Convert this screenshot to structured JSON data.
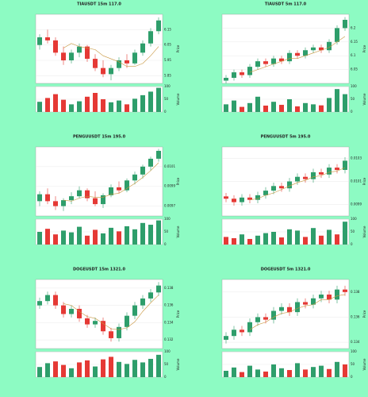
{
  "chart_data": [
    {
      "type": "candlestick",
      "title": "TIAUSDT 15m 117.0",
      "y_label": "Price",
      "volume_label": "Volume",
      "up_color": "#2e9e6b",
      "down_color": "#e53935",
      "ma_color": "#c8963e",
      "ylim": [
        5.8,
        6.25
      ],
      "yticks": [
        5.85,
        5.95,
        6.05,
        6.15
      ],
      "vlim": [
        0,
        100
      ],
      "vticks": [
        0,
        50,
        100
      ],
      "candles": [
        [
          6.05,
          6.12,
          6.02,
          6.1
        ],
        [
          6.1,
          6.15,
          6.06,
          6.08
        ],
        [
          6.08,
          6.1,
          5.98,
          6.0
        ],
        [
          6.0,
          6.04,
          5.92,
          5.95
        ],
        [
          5.95,
          6.02,
          5.93,
          6.0
        ],
        [
          6.0,
          6.06,
          5.97,
          6.04
        ],
        [
          6.04,
          6.05,
          5.94,
          5.96
        ],
        [
          5.96,
          5.99,
          5.88,
          5.9
        ],
        [
          5.9,
          5.95,
          5.84,
          5.86
        ],
        [
          5.86,
          5.92,
          5.82,
          5.9
        ],
        [
          5.9,
          5.97,
          5.88,
          5.95
        ],
        [
          5.95,
          5.99,
          5.9,
          5.93
        ],
        [
          5.93,
          6.02,
          5.92,
          6.0
        ],
        [
          6.0,
          6.08,
          5.98,
          6.06
        ],
        [
          6.06,
          6.16,
          6.04,
          6.14
        ],
        [
          6.14,
          6.23,
          6.12,
          6.21
        ]
      ],
      "volumes": [
        40,
        55,
        70,
        48,
        30,
        42,
        60,
        75,
        50,
        38,
        45,
        30,
        52,
        66,
        80,
        95
      ],
      "ma": [
        null,
        null,
        null,
        6.03,
        6.06,
        6.04,
        6.03,
        6.02,
        5.98,
        5.96,
        5.94,
        5.91,
        5.91,
        5.93,
        5.98,
        6.04
      ]
    },
    {
      "type": "candlestick",
      "title": "TIAUSDT 5m 117.0",
      "y_label": "Price",
      "volume_label": "Volume",
      "up_color": "#2e9e6b",
      "down_color": "#e53935",
      "ma_color": "#c8963e",
      "ylim": [
        6.0,
        6.25
      ],
      "yticks": [
        6.05,
        6.1,
        6.15,
        6.2
      ],
      "vlim": [
        0,
        100
      ],
      "vticks": [
        0,
        50,
        100
      ],
      "candles": [
        [
          6.01,
          6.03,
          6.0,
          6.02
        ],
        [
          6.02,
          6.05,
          6.01,
          6.04
        ],
        [
          6.04,
          6.05,
          6.02,
          6.03
        ],
        [
          6.03,
          6.07,
          6.02,
          6.06
        ],
        [
          6.06,
          6.09,
          6.05,
          6.08
        ],
        [
          6.08,
          6.09,
          6.06,
          6.07
        ],
        [
          6.07,
          6.1,
          6.06,
          6.09
        ],
        [
          6.09,
          6.1,
          6.07,
          6.08
        ],
        [
          6.08,
          6.12,
          6.07,
          6.11
        ],
        [
          6.11,
          6.12,
          6.09,
          6.1
        ],
        [
          6.1,
          6.13,
          6.09,
          6.12
        ],
        [
          6.12,
          6.14,
          6.11,
          6.13
        ],
        [
          6.13,
          6.14,
          6.11,
          6.12
        ],
        [
          6.12,
          6.16,
          6.11,
          6.15
        ],
        [
          6.15,
          6.21,
          6.14,
          6.2
        ],
        [
          6.2,
          6.24,
          6.19,
          6.23
        ]
      ],
      "volumes": [
        30,
        45,
        20,
        35,
        60,
        25,
        40,
        28,
        50,
        22,
        35,
        30,
        26,
        55,
        90,
        70
      ],
      "ma": [
        null,
        null,
        null,
        6.04,
        6.05,
        6.06,
        6.07,
        6.08,
        6.09,
        6.09,
        6.1,
        6.11,
        6.12,
        6.13,
        6.15,
        6.17
      ]
    },
    {
      "type": "candlestick",
      "title": "PENGUUSDT 15m 195.0",
      "y_label": "Price",
      "volume_label": "Volume",
      "up_color": "#2e9e6b",
      "down_color": "#e53935",
      "ma_color": "#c8963e",
      "ylim": [
        0.0096,
        0.0103
      ],
      "yticks": [
        0.0097,
        0.0099,
        0.0101
      ],
      "vlim": [
        0,
        100
      ],
      "vticks": [
        0,
        50,
        100
      ],
      "candles": [
        [
          0.00975,
          0.00985,
          0.0097,
          0.00982
        ],
        [
          0.00982,
          0.00988,
          0.00972,
          0.00975
        ],
        [
          0.00975,
          0.0098,
          0.00966,
          0.0097
        ],
        [
          0.0097,
          0.00978,
          0.00965,
          0.00976
        ],
        [
          0.00976,
          0.00984,
          0.00972,
          0.0098
        ],
        [
          0.0098,
          0.0099,
          0.00978,
          0.00986
        ],
        [
          0.00986,
          0.00988,
          0.00975,
          0.00978
        ],
        [
          0.00978,
          0.00985,
          0.0097,
          0.00972
        ],
        [
          0.00972,
          0.00983,
          0.00968,
          0.00981
        ],
        [
          0.00981,
          0.00992,
          0.00979,
          0.00989
        ],
        [
          0.00989,
          0.00995,
          0.00983,
          0.00986
        ],
        [
          0.00986,
          0.00998,
          0.00984,
          0.00996
        ],
        [
          0.00996,
          0.01005,
          0.00992,
          0.01002
        ],
        [
          0.01002,
          0.01012,
          0.00998,
          0.0101
        ],
        [
          0.0101,
          0.0102,
          0.01006,
          0.01018
        ],
        [
          0.01018,
          0.01028,
          0.01015,
          0.01026
        ]
      ],
      "volumes": [
        50,
        62,
        40,
        55,
        48,
        70,
        35,
        58,
        44,
        66,
        52,
        72,
        60,
        85,
        78,
        95
      ],
      "ma": [
        null,
        null,
        null,
        0.00976,
        0.00975,
        0.00978,
        0.0098,
        0.00979,
        0.00979,
        0.00982,
        0.00983,
        0.00988,
        0.00993,
        0.00999,
        0.01006,
        0.01014
      ]
    },
    {
      "type": "candlestick",
      "title": "PENGUUSDT 5m 195.0",
      "y_label": "Price",
      "volume_label": "Volume",
      "up_color": "#2e9e6b",
      "down_color": "#e53935",
      "ma_color": "#c8963e",
      "ylim": [
        0.0098,
        0.0104
      ],
      "yticks": [
        0.0099,
        0.0101,
        0.0103
      ],
      "vlim": [
        0,
        100
      ],
      "vticks": [
        0,
        50,
        100
      ],
      "candles": [
        [
          0.00997,
          0.01,
          0.00992,
          0.00995
        ],
        [
          0.00995,
          0.00998,
          0.00989,
          0.00992
        ],
        [
          0.00992,
          0.00999,
          0.00989,
          0.00996
        ],
        [
          0.00996,
          0.00999,
          0.00991,
          0.00994
        ],
        [
          0.00994,
          0.01001,
          0.00991,
          0.00998
        ],
        [
          0.00998,
          0.01005,
          0.00995,
          0.01002
        ],
        [
          0.01002,
          0.01009,
          0.00999,
          0.01006
        ],
        [
          0.01006,
          0.01009,
          0.01001,
          0.01004
        ],
        [
          0.01004,
          0.01013,
          0.01001,
          0.0101
        ],
        [
          0.0101,
          0.01017,
          0.01007,
          0.01014
        ],
        [
          0.01014,
          0.01017,
          0.01009,
          0.01012
        ],
        [
          0.01012,
          0.01021,
          0.01009,
          0.01018
        ],
        [
          0.01018,
          0.01021,
          0.01013,
          0.01016
        ],
        [
          0.01016,
          0.01025,
          0.01013,
          0.01022
        ],
        [
          0.01022,
          0.01025,
          0.01017,
          0.0102
        ],
        [
          0.0102,
          0.01031,
          0.01017,
          0.01028
        ]
      ],
      "volumes": [
        30,
        25,
        40,
        22,
        35,
        45,
        50,
        28,
        60,
        55,
        30,
        65,
        35,
        58,
        40,
        90
      ],
      "ma": [
        null,
        null,
        null,
        0.00994,
        0.00995,
        0.00998,
        0.01,
        0.01003,
        0.01006,
        0.01009,
        0.01011,
        0.01014,
        0.01015,
        0.01018,
        0.01019,
        0.01022
      ]
    },
    {
      "type": "candlestick",
      "title": "DOGEUSDT 15m 1321.0",
      "y_label": "Price",
      "volume_label": "Volume",
      "up_color": "#2e9e6b",
      "down_color": "#e53935",
      "ma_color": "#c8963e",
      "ylim": [
        0.131,
        0.139
      ],
      "yticks": [
        0.132,
        0.134,
        0.136,
        0.138
      ],
      "vlim": [
        0,
        100
      ],
      "vticks": [
        0,
        50,
        100
      ],
      "candles": [
        [
          0.136,
          0.1369,
          0.1356,
          0.1365
        ],
        [
          0.1365,
          0.1376,
          0.1361,
          0.1372
        ],
        [
          0.1372,
          0.1376,
          0.1356,
          0.136
        ],
        [
          0.136,
          0.1364,
          0.1346,
          0.135
        ],
        [
          0.135,
          0.136,
          0.1346,
          0.1356
        ],
        [
          0.1356,
          0.136,
          0.1341,
          0.1345
        ],
        [
          0.1345,
          0.1349,
          0.1334,
          0.1338
        ],
        [
          0.1338,
          0.1346,
          0.1334,
          0.1342
        ],
        [
          0.1342,
          0.1346,
          0.1326,
          0.133
        ],
        [
          0.133,
          0.1334,
          0.1318,
          0.1322
        ],
        [
          0.1322,
          0.1339,
          0.1318,
          0.1335
        ],
        [
          0.1335,
          0.1352,
          0.1331,
          0.1348
        ],
        [
          0.1348,
          0.1364,
          0.1344,
          0.136
        ],
        [
          0.136,
          0.1372,
          0.1356,
          0.1368
        ],
        [
          0.1368,
          0.1379,
          0.1364,
          0.1375
        ],
        [
          0.1375,
          0.1387,
          0.1371,
          0.1383
        ]
      ],
      "volumes": [
        40,
        55,
        62,
        48,
        35,
        58,
        66,
        42,
        70,
        80,
        60,
        52,
        68,
        58,
        72,
        88
      ],
      "ma": [
        null,
        null,
        null,
        0.1362,
        0.136,
        0.1353,
        0.1347,
        0.1345,
        0.1339,
        0.1333,
        0.1332,
        0.1334,
        0.1341,
        0.1353,
        0.1363,
        0.1372
      ]
    },
    {
      "type": "candlestick",
      "title": "DOGEUSDT 5m 1321.0",
      "y_label": "Price",
      "volume_label": "Volume",
      "up_color": "#2e9e6b",
      "down_color": "#e53935",
      "ma_color": "#c8963e",
      "ylim": [
        0.1335,
        0.139
      ],
      "yticks": [
        0.134,
        0.136,
        0.138
      ],
      "vlim": [
        0,
        100
      ],
      "vticks": [
        0,
        50,
        100
      ],
      "candles": [
        [
          0.1342,
          0.1348,
          0.1339,
          0.1345
        ],
        [
          0.1345,
          0.1353,
          0.1342,
          0.135
        ],
        [
          0.135,
          0.1353,
          0.1345,
          0.1348
        ],
        [
          0.1348,
          0.1359,
          0.1345,
          0.1356
        ],
        [
          0.1356,
          0.1363,
          0.1353,
          0.136
        ],
        [
          0.136,
          0.1363,
          0.1355,
          0.1358
        ],
        [
          0.1358,
          0.1368,
          0.1355,
          0.1365
        ],
        [
          0.1365,
          0.1371,
          0.1362,
          0.1368
        ],
        [
          0.1368,
          0.1371,
          0.1361,
          0.1364
        ],
        [
          0.1364,
          0.1375,
          0.1361,
          0.1372
        ],
        [
          0.1372,
          0.1375,
          0.1367,
          0.137
        ],
        [
          0.137,
          0.1378,
          0.1367,
          0.1375
        ],
        [
          0.1375,
          0.1381,
          0.1372,
          0.1378
        ],
        [
          0.1378,
          0.1381,
          0.1371,
          0.1374
        ],
        [
          0.1374,
          0.1385,
          0.1371,
          0.1382
        ],
        [
          0.1382,
          0.1385,
          0.1377,
          0.138
        ]
      ],
      "volumes": [
        25,
        38,
        20,
        45,
        30,
        22,
        50,
        35,
        28,
        55,
        30,
        40,
        45,
        32,
        60,
        50
      ],
      "ma": [
        null,
        null,
        null,
        0.135,
        0.1354,
        0.1356,
        0.136,
        0.1363,
        0.1364,
        0.1367,
        0.1369,
        0.137,
        0.1374,
        0.1374,
        0.1377,
        0.1378
      ]
    }
  ]
}
